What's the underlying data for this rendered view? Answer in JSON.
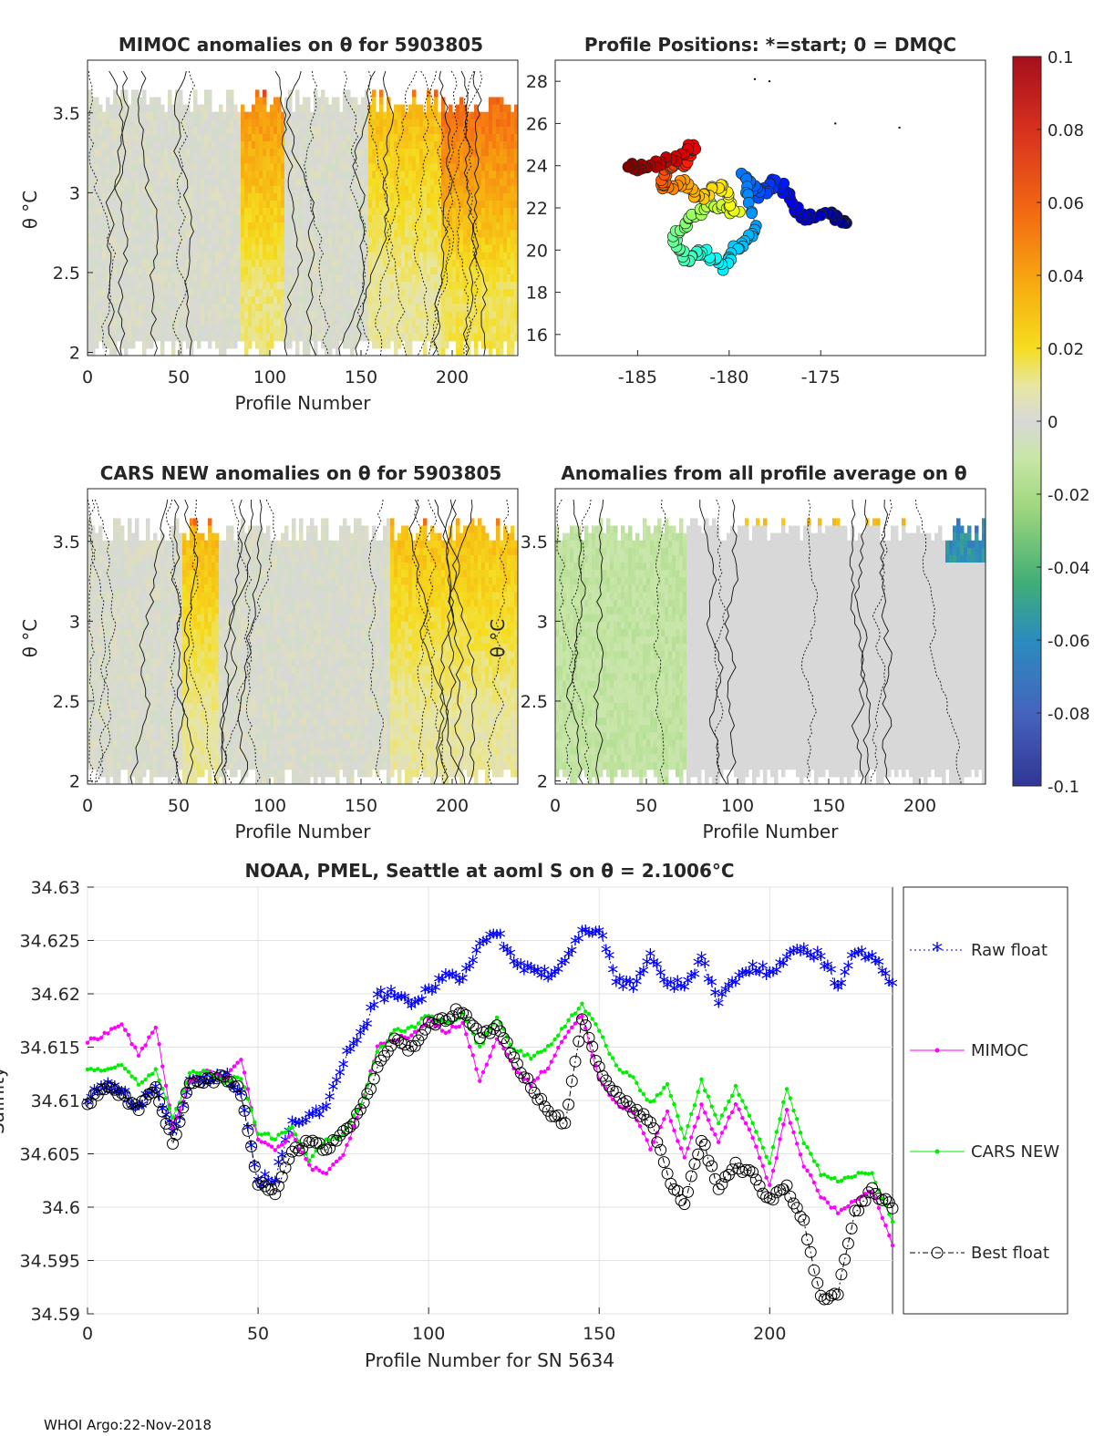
{
  "panels": {
    "mimoc": {
      "title": "MIMOC anomalies on θ  for 5903805",
      "xlabel": "Profile Number",
      "ylabel": "θ °C",
      "xticks": [
        0,
        50,
        100,
        150,
        200
      ],
      "yticks": [
        2,
        2.5,
        3,
        3.5
      ],
      "xlim": [
        0,
        236
      ],
      "ylim": [
        1.98,
        3.83
      ]
    },
    "positions": {
      "title": "Profile Positions: *=start; 0 = DMQC",
      "xticks": [
        -185,
        -180,
        -175
      ],
      "yticks": [
        16,
        18,
        20,
        22,
        24,
        26,
        28
      ],
      "xlim": [
        -189.5,
        -166
      ],
      "ylim": [
        15,
        29
      ]
    },
    "cars": {
      "title": "CARS NEW anomalies on θ for 5903805",
      "xlabel": "Profile Number",
      "ylabel": "θ °C",
      "xticks": [
        0,
        50,
        100,
        150,
        200
      ],
      "yticks": [
        2,
        2.5,
        3,
        3.5
      ],
      "xlim": [
        0,
        236
      ],
      "ylim": [
        1.98,
        3.83
      ]
    },
    "allavg": {
      "title": "Anomalies from all profile average on θ",
      "xlabel": "Profile Number",
      "ylabel": "θ °C",
      "xticks": [
        0,
        50,
        100,
        150,
        200
      ],
      "yticks": [
        2,
        2.5,
        3,
        3.5
      ],
      "xlim": [
        0,
        236
      ],
      "ylim": [
        1.98,
        3.83
      ]
    }
  },
  "colorbar": {
    "ticks": [
      "0.1",
      "0.08",
      "0.06",
      "0.04",
      "0.02",
      "0",
      "-0.02",
      "-0.04",
      "-0.06",
      "-0.08",
      "-0.1"
    ]
  },
  "chart_data": {
    "type": "line",
    "title": "NOAA, PMEL, Seattle at aoml S on θ = 2.1006°C",
    "xlabel": "Profile Number for SN 5634",
    "ylabel": "Salinity",
    "xlim": [
      0,
      236
    ],
    "ylim": [
      34.59,
      34.63
    ],
    "xticks": [
      0,
      50,
      100,
      150,
      200
    ],
    "yticks": [
      "34.59",
      "34.595",
      "34.6",
      "34.605",
      "34.61",
      "34.615",
      "34.62",
      "34.625",
      "34.63"
    ],
    "grid": true,
    "legend_position": "right",
    "series": [
      {
        "name": "Raw float",
        "color": "#0000ff",
        "marker": "star",
        "style": "dotted",
        "keys": [
          [
            0,
            34.6098
          ],
          [
            5,
            34.6112
          ],
          [
            10,
            34.6105
          ],
          [
            15,
            34.6092
          ],
          [
            20,
            34.6112
          ],
          [
            25,
            34.6065
          ],
          [
            30,
            34.6115
          ],
          [
            35,
            34.6118
          ],
          [
            40,
            34.6122
          ],
          [
            45,
            34.6108
          ],
          [
            50,
            34.6022
          ],
          [
            55,
            34.6025
          ],
          [
            60,
            34.6078
          ],
          [
            65,
            34.6082
          ],
          [
            70,
            34.6088
          ],
          [
            75,
            34.6135
          ],
          [
            80,
            34.6158
          ],
          [
            85,
            34.6195
          ],
          [
            90,
            34.6198
          ],
          [
            95,
            34.6185
          ],
          [
            100,
            34.6202
          ],
          [
            105,
            34.6215
          ],
          [
            110,
            34.6212
          ],
          [
            115,
            34.6245
          ],
          [
            120,
            34.6255
          ],
          [
            125,
            34.6228
          ],
          [
            130,
            34.6218
          ],
          [
            135,
            34.6215
          ],
          [
            140,
            34.623
          ],
          [
            145,
            34.6255
          ],
          [
            150,
            34.6258
          ],
          [
            155,
            34.621
          ],
          [
            160,
            34.6205
          ],
          [
            165,
            34.6232
          ],
          [
            170,
            34.6208
          ],
          [
            175,
            34.6205
          ],
          [
            180,
            34.623
          ],
          [
            185,
            34.619
          ],
          [
            190,
            34.621
          ],
          [
            195,
            34.6222
          ],
          [
            200,
            34.6218
          ],
          [
            205,
            34.6232
          ],
          [
            210,
            34.624
          ],
          [
            215,
            34.6232
          ],
          [
            220,
            34.6205
          ],
          [
            225,
            34.6238
          ],
          [
            230,
            34.6232
          ],
          [
            236,
            34.6205
          ]
        ]
      },
      {
        "name": "MIMOC",
        "color": "#ff00ff",
        "marker": "dot",
        "style": "solid",
        "keys": [
          [
            0,
            34.6155
          ],
          [
            5,
            34.6162
          ],
          [
            10,
            34.6172
          ],
          [
            15,
            34.6142
          ],
          [
            20,
            34.617
          ],
          [
            25,
            34.6075
          ],
          [
            30,
            34.6118
          ],
          [
            35,
            34.6128
          ],
          [
            40,
            34.612
          ],
          [
            45,
            34.614
          ],
          [
            50,
            34.6062
          ],
          [
            55,
            34.6055
          ],
          [
            60,
            34.6068
          ],
          [
            65,
            34.6038
          ],
          [
            70,
            34.6032
          ],
          [
            75,
            34.6048
          ],
          [
            80,
            34.6092
          ],
          [
            85,
            34.615
          ],
          [
            90,
            34.6158
          ],
          [
            95,
            34.616
          ],
          [
            100,
            34.6175
          ],
          [
            105,
            34.6165
          ],
          [
            110,
            34.6172
          ],
          [
            115,
            34.612
          ],
          [
            120,
            34.6158
          ],
          [
            125,
            34.613
          ],
          [
            130,
            34.6115
          ],
          [
            135,
            34.6132
          ],
          [
            140,
            34.616
          ],
          [
            145,
            34.618
          ],
          [
            150,
            34.612
          ],
          [
            155,
            34.6098
          ],
          [
            160,
            34.6088
          ],
          [
            165,
            34.6055
          ],
          [
            170,
            34.609
          ],
          [
            175,
            34.6045
          ],
          [
            180,
            34.6095
          ],
          [
            185,
            34.6062
          ],
          [
            190,
            34.6098
          ],
          [
            195,
            34.6065
          ],
          [
            200,
            34.602
          ],
          [
            205,
            34.609
          ],
          [
            210,
            34.604
          ],
          [
            215,
            34.601
          ],
          [
            220,
            34.5995
          ],
          [
            225,
            34.6005
          ],
          [
            230,
            34.6015
          ],
          [
            236,
            34.5965
          ]
        ]
      },
      {
        "name": "CARS NEW",
        "color": "#00ee00",
        "marker": "dot",
        "style": "solid",
        "keys": [
          [
            0,
            34.613
          ],
          [
            5,
            34.6128
          ],
          [
            10,
            34.6135
          ],
          [
            15,
            34.6115
          ],
          [
            20,
            34.6128
          ],
          [
            25,
            34.6082
          ],
          [
            30,
            34.6125
          ],
          [
            35,
            34.6128
          ],
          [
            40,
            34.6118
          ],
          [
            45,
            34.6122
          ],
          [
            50,
            34.607
          ],
          [
            55,
            34.6065
          ],
          [
            60,
            34.6075
          ],
          [
            65,
            34.6045
          ],
          [
            70,
            34.6062
          ],
          [
            75,
            34.6068
          ],
          [
            80,
            34.6095
          ],
          [
            85,
            34.6145
          ],
          [
            90,
            34.6165
          ],
          [
            95,
            34.6168
          ],
          [
            100,
            34.618
          ],
          [
            105,
            34.6172
          ],
          [
            110,
            34.618
          ],
          [
            115,
            34.615
          ],
          [
            120,
            34.6178
          ],
          [
            125,
            34.6148
          ],
          [
            130,
            34.614
          ],
          [
            135,
            34.615
          ],
          [
            140,
            34.617
          ],
          [
            145,
            34.619
          ],
          [
            150,
            34.6165
          ],
          [
            155,
            34.6132
          ],
          [
            160,
            34.612
          ],
          [
            165,
            34.6098
          ],
          [
            170,
            34.6115
          ],
          [
            175,
            34.6065
          ],
          [
            180,
            34.6118
          ],
          [
            185,
            34.608
          ],
          [
            190,
            34.6112
          ],
          [
            195,
            34.608
          ],
          [
            200,
            34.604
          ],
          [
            205,
            34.6112
          ],
          [
            210,
            34.606
          ],
          [
            215,
            34.6032
          ],
          [
            220,
            34.6025
          ],
          [
            225,
            34.603
          ],
          [
            230,
            34.6032
          ],
          [
            236,
            34.5985
          ]
        ]
      },
      {
        "name": "Best float",
        "color": "#000000",
        "marker": "circle",
        "style": "dashdot",
        "keys": [
          [
            0,
            34.6098
          ],
          [
            5,
            34.6112
          ],
          [
            10,
            34.6105
          ],
          [
            15,
            34.6092
          ],
          [
            20,
            34.6112
          ],
          [
            25,
            34.606
          ],
          [
            30,
            34.6115
          ],
          [
            35,
            34.6118
          ],
          [
            40,
            34.6122
          ],
          [
            45,
            34.6108
          ],
          [
            50,
            34.6022
          ],
          [
            55,
            34.6015
          ],
          [
            60,
            34.6052
          ],
          [
            65,
            34.6062
          ],
          [
            70,
            34.6055
          ],
          [
            75,
            34.6068
          ],
          [
            80,
            34.609
          ],
          [
            85,
            34.613
          ],
          [
            90,
            34.6158
          ],
          [
            95,
            34.6148
          ],
          [
            100,
            34.6172
          ],
          [
            105,
            34.6178
          ],
          [
            110,
            34.6185
          ],
          [
            115,
            34.616
          ],
          [
            120,
            34.617
          ],
          [
            125,
            34.614
          ],
          [
            130,
            34.6112
          ],
          [
            135,
            34.609
          ],
          [
            140,
            34.608
          ],
          [
            145,
            34.6178
          ],
          [
            150,
            34.613
          ],
          [
            155,
            34.6105
          ],
          [
            160,
            34.609
          ],
          [
            165,
            34.6082
          ],
          [
            170,
            34.603
          ],
          [
            175,
            34.6
          ],
          [
            180,
            34.6065
          ],
          [
            185,
            34.602
          ],
          [
            190,
            34.604
          ],
          [
            195,
            34.603
          ],
          [
            200,
            34.6005
          ],
          [
            205,
            34.602
          ],
          [
            210,
            34.5985
          ],
          [
            215,
            34.5915
          ],
          [
            220,
            34.592
          ],
          [
            225,
            34.5995
          ],
          [
            230,
            34.6015
          ],
          [
            236,
            34.6
          ]
        ]
      }
    ]
  },
  "footer": "WHOI Argo:22-Nov-2018"
}
